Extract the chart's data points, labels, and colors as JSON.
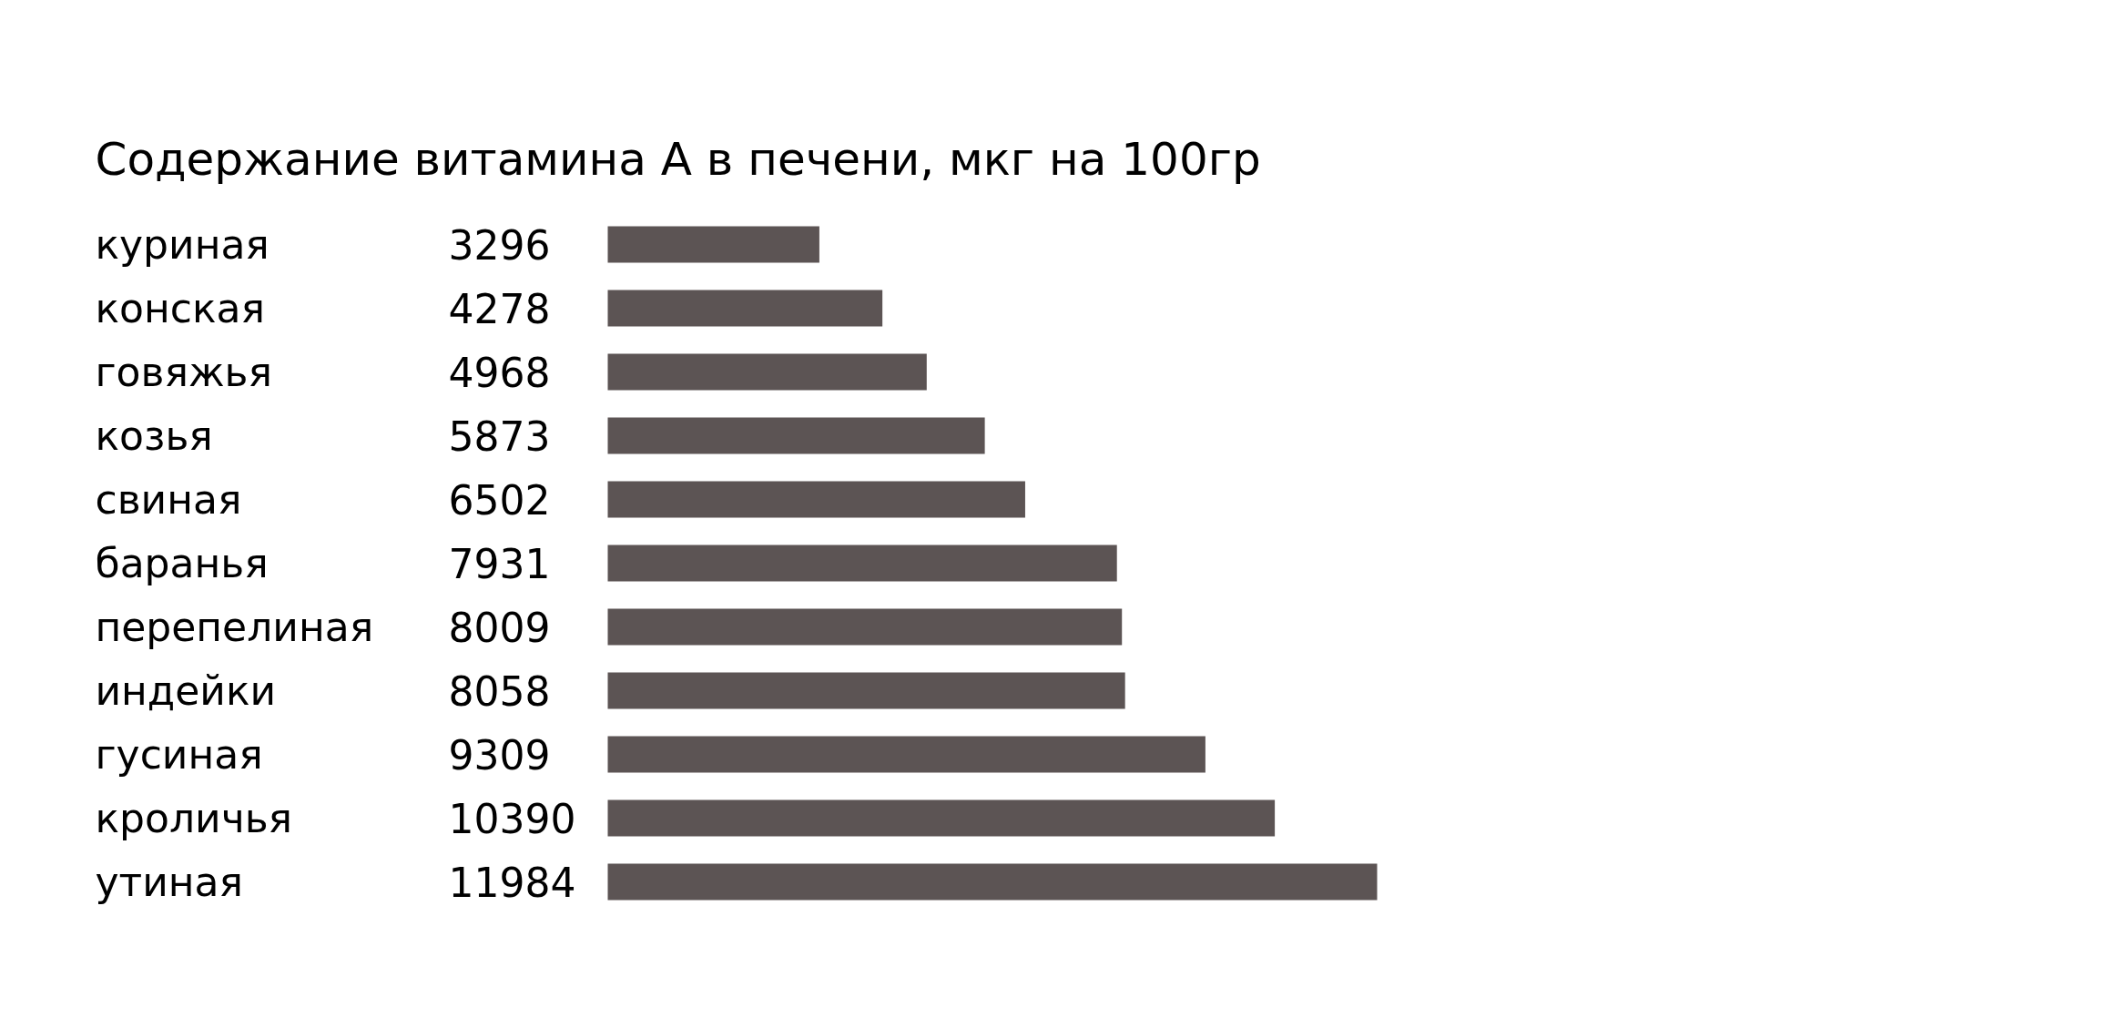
{
  "chart_data": {
    "type": "bar",
    "orientation": "horizontal",
    "title": "Содержание витамина А в печени, мкг на 100гр",
    "categories": [
      "куриная",
      "конская",
      "говяжья",
      "козья",
      "свиная",
      "баранья",
      "перепелиная",
      "индейки",
      "гусиная",
      "кроличья",
      "утиная"
    ],
    "values": [
      3296,
      4278,
      4968,
      5873,
      6502,
      7931,
      8009,
      8058,
      9309,
      10390,
      11984
    ],
    "color": "#5c5454",
    "data_labels": true
  }
}
